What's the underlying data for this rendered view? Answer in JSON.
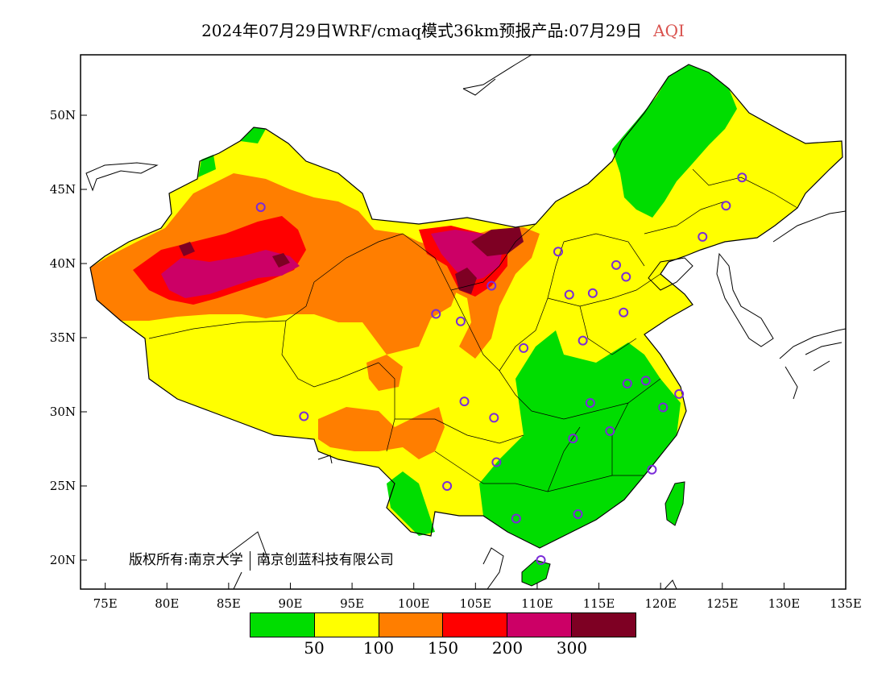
{
  "header": {
    "title": "2024年07月29日WRF/cmaq模式36km预报产品:07月29日",
    "variable": "AQI",
    "variable_color": "#d9534f"
  },
  "axes": {
    "lat_labels": [
      "50N",
      "45N",
      "40N",
      "35N",
      "30N",
      "25N",
      "20N"
    ],
    "lon_labels": [
      "75E",
      "80E",
      "85E",
      "90E",
      "95E",
      "100E",
      "105E",
      "110E",
      "115E",
      "120E",
      "125E",
      "130E",
      "135E"
    ]
  },
  "copyright": {
    "left": "版权所有:南京大学",
    "right": "南京创蓝科技有限公司"
  },
  "legend": {
    "colors": [
      "#00dd00",
      "#ffff00",
      "#ff7e00",
      "#ff0000",
      "#cc0066",
      "#7e0023"
    ],
    "labels": [
      "50",
      "100",
      "150",
      "200",
      "300"
    ]
  },
  "stations": [
    {
      "lon": 87.6,
      "lat": 43.8
    },
    {
      "lon": 91.1,
      "lat": 29.7
    },
    {
      "lon": 101.8,
      "lat": 36.6
    },
    {
      "lon": 103.8,
      "lat": 36.1
    },
    {
      "lon": 106.3,
      "lat": 38.5
    },
    {
      "lon": 111.7,
      "lat": 40.8
    },
    {
      "lon": 112.6,
      "lat": 37.9
    },
    {
      "lon": 114.5,
      "lat": 38.0
    },
    {
      "lon": 116.4,
      "lat": 39.9
    },
    {
      "lon": 117.2,
      "lat": 39.1
    },
    {
      "lon": 117.0,
      "lat": 36.7
    },
    {
      "lon": 113.7,
      "lat": 34.8
    },
    {
      "lon": 108.9,
      "lat": 34.3
    },
    {
      "lon": 104.1,
      "lat": 30.7
    },
    {
      "lon": 106.5,
      "lat": 29.6
    },
    {
      "lon": 106.7,
      "lat": 26.6
    },
    {
      "lon": 102.7,
      "lat": 25.0
    },
    {
      "lon": 108.3,
      "lat": 22.8
    },
    {
      "lon": 113.3,
      "lat": 23.1
    },
    {
      "lon": 110.3,
      "lat": 20.0
    },
    {
      "lon": 112.9,
      "lat": 28.2
    },
    {
      "lon": 114.3,
      "lat": 30.6
    },
    {
      "lon": 115.9,
      "lat": 28.7
    },
    {
      "lon": 117.3,
      "lat": 31.9
    },
    {
      "lon": 118.8,
      "lat": 32.1
    },
    {
      "lon": 120.2,
      "lat": 30.3
    },
    {
      "lon": 121.5,
      "lat": 31.2
    },
    {
      "lon": 119.3,
      "lat": 26.1
    },
    {
      "lon": 123.4,
      "lat": 41.8
    },
    {
      "lon": 125.3,
      "lat": 43.9
    },
    {
      "lon": 126.6,
      "lat": 45.8
    }
  ]
}
